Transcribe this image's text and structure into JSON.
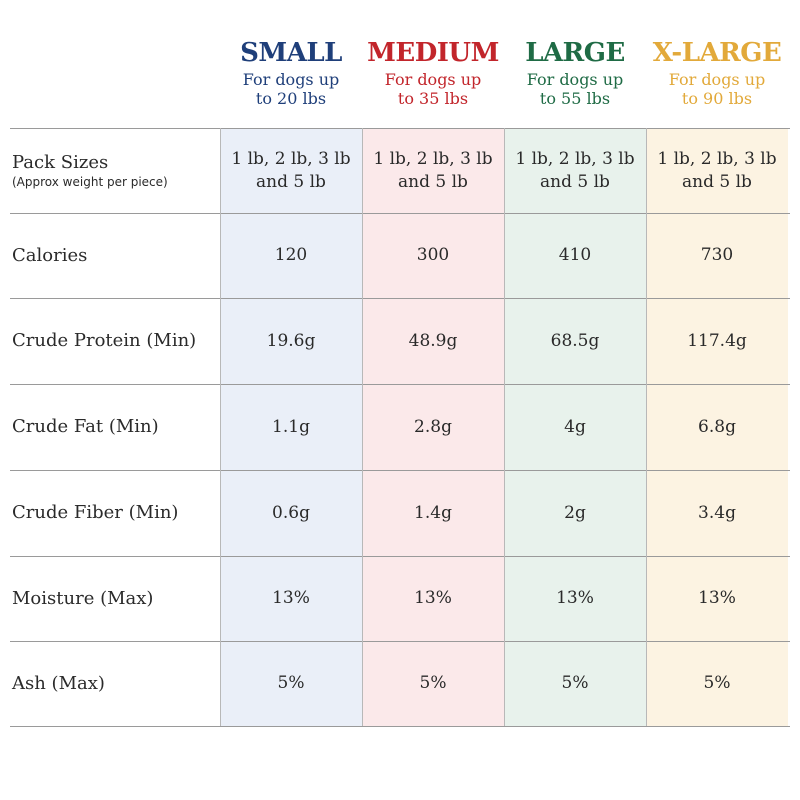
{
  "sizes": [
    {
      "title": "SMALL",
      "subtitle_line1": "For dogs up",
      "subtitle_line2": "to 20 lbs",
      "color": "#1f3f7a",
      "bg": "#eaeff8"
    },
    {
      "title": "MEDIUM",
      "subtitle_line1": "For dogs up",
      "subtitle_line2": "to 35 lbs",
      "color": "#c2252b",
      "bg": "#fbe9ea"
    },
    {
      "title": "LARGE",
      "subtitle_line1": "For dogs up",
      "subtitle_line2": "to 55 lbs",
      "color": "#1f6b45",
      "bg": "#e8f2ec"
    },
    {
      "title": "X-LARGE",
      "subtitle_line1": "For dogs up",
      "subtitle_line2": "to 90 lbs",
      "color": "#e2a93a",
      "bg": "#fcf3e2"
    }
  ],
  "rows": [
    {
      "label": "Pack Sizes",
      "sublabel": "(Approx weight per piece)",
      "values": [
        "1 lb, 2 lb, 3 lb\nand 5 lb",
        "1 lb, 2 lb, 3 lb\nand 5 lb",
        "1 lb, 2 lb, 3 lb\nand 5 lb",
        "1 lb, 2 lb, 3 lb\nand 5 lb"
      ]
    },
    {
      "label": "Calories",
      "values": [
        "120",
        "300",
        "410",
        "730"
      ]
    },
    {
      "label": "Crude Protein (Min)",
      "values": [
        "19.6g",
        "48.9g",
        "68.5g",
        "117.4g"
      ]
    },
    {
      "label": "Crude Fat (Min)",
      "values": [
        "1.1g",
        "2.8g",
        "4g",
        "6.8g"
      ]
    },
    {
      "label": "Crude Fiber (Min)",
      "values": [
        "0.6g",
        "1.4g",
        "2g",
        "3.4g"
      ]
    },
    {
      "label": "Moisture (Max)",
      "values": [
        "13%",
        "13%",
        "13%",
        "13%"
      ]
    },
    {
      "label": "Ash (Max)",
      "values": [
        "5%",
        "5%",
        "5%",
        "5%"
      ]
    }
  ]
}
